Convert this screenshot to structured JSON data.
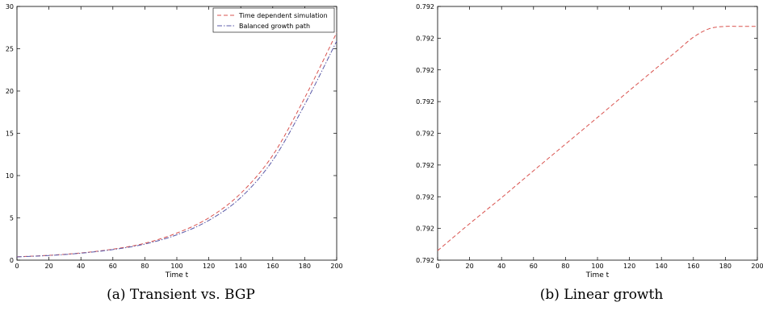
{
  "chart_data": [
    {
      "type": "line",
      "caption": "(a)  Transient vs. BGP",
      "xlabel": "Time t",
      "ylabel": "",
      "xlim": [
        0,
        200
      ],
      "ylim": [
        0,
        30
      ],
      "x_ticks": [
        "0",
        "20",
        "40",
        "60",
        "80",
        "100",
        "120",
        "140",
        "160",
        "180",
        "200"
      ],
      "y_ticks": [
        "0",
        "5",
        "10",
        "15",
        "20",
        "25",
        "30"
      ],
      "legend_position": "top-right",
      "grid": false,
      "series": [
        {
          "name": "Time dependent simulation",
          "color": "#d9534f",
          "dash": "dashed",
          "x": [
            0,
            20,
            40,
            60,
            80,
            100,
            120,
            140,
            160,
            180,
            200
          ],
          "y": [
            0.4,
            0.57,
            0.85,
            1.3,
            2.0,
            3.2,
            5.0,
            7.9,
            12.4,
            19.2,
            26.9
          ]
        },
        {
          "name": "Balanced growth path",
          "color": "#5a5aa8",
          "dash": "dashdot",
          "x": [
            0,
            20,
            40,
            60,
            80,
            100,
            120,
            140,
            160,
            180,
            200
          ],
          "y": [
            0.38,
            0.55,
            0.82,
            1.25,
            1.9,
            3.0,
            4.7,
            7.4,
            11.8,
            18.4,
            25.9
          ]
        }
      ]
    },
    {
      "type": "line",
      "caption": "(b)  Linear growth",
      "xlabel": "Time t",
      "ylabel": "",
      "xlim": [
        0,
        200
      ],
      "ylim": [
        0,
        8
      ],
      "x_ticks": [
        "0",
        "20",
        "40",
        "60",
        "80",
        "100",
        "120",
        "140",
        "160",
        "180",
        "200"
      ],
      "y_ticks": [
        "0.792",
        "0.792",
        "0.792",
        "0.792",
        "0.792",
        "0.792",
        "0.792",
        "0.792",
        "0.792"
      ],
      "grid": false,
      "series": [
        {
          "name": "",
          "color": "#d9534f",
          "dash": "dashed",
          "x": [
            0,
            20,
            40,
            60,
            80,
            100,
            120,
            140,
            150,
            160,
            170,
            180,
            190,
            200
          ],
          "y": [
            0.3,
            1.15,
            1.97,
            2.82,
            3.66,
            4.5,
            5.35,
            6.19,
            6.61,
            7.03,
            7.3,
            7.37,
            7.37,
            7.37
          ]
        }
      ]
    }
  ]
}
